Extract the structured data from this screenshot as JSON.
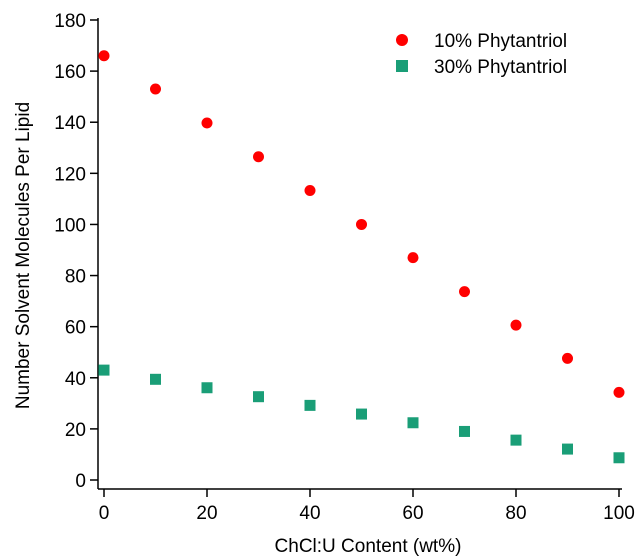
{
  "chart_data": {
    "type": "scatter",
    "title": "",
    "xlabel": "ChCl:U Content (wt%)",
    "ylabel": "Number Solvent Molecules Per Lipid",
    "xlim": [
      -1,
      100
    ],
    "ylim": [
      -3,
      180
    ],
    "xticks": [
      0,
      20,
      40,
      60,
      80,
      100
    ],
    "yticks": [
      0,
      20,
      40,
      60,
      80,
      100,
      120,
      140,
      160,
      180
    ],
    "legend_position": "top-right",
    "grid": false,
    "series": [
      {
        "name": "10% Phytantriol",
        "marker": "circle",
        "color": "#ff0000",
        "x": [
          0,
          10,
          20,
          30,
          40,
          50,
          60,
          70,
          80,
          90,
          100
        ],
        "y": [
          166,
          153,
          139.7,
          126.5,
          113.3,
          100,
          87,
          73.7,
          60.6,
          47.6,
          34.3
        ]
      },
      {
        "name": "30% Phytantriol",
        "marker": "square",
        "color": "#1a9e77",
        "x": [
          0,
          10,
          20,
          30,
          40,
          50,
          60,
          70,
          80,
          90,
          100
        ],
        "y": [
          43,
          39.4,
          36.1,
          32.6,
          29.2,
          25.8,
          22.4,
          19,
          15.6,
          12.1,
          8.7
        ]
      }
    ]
  }
}
